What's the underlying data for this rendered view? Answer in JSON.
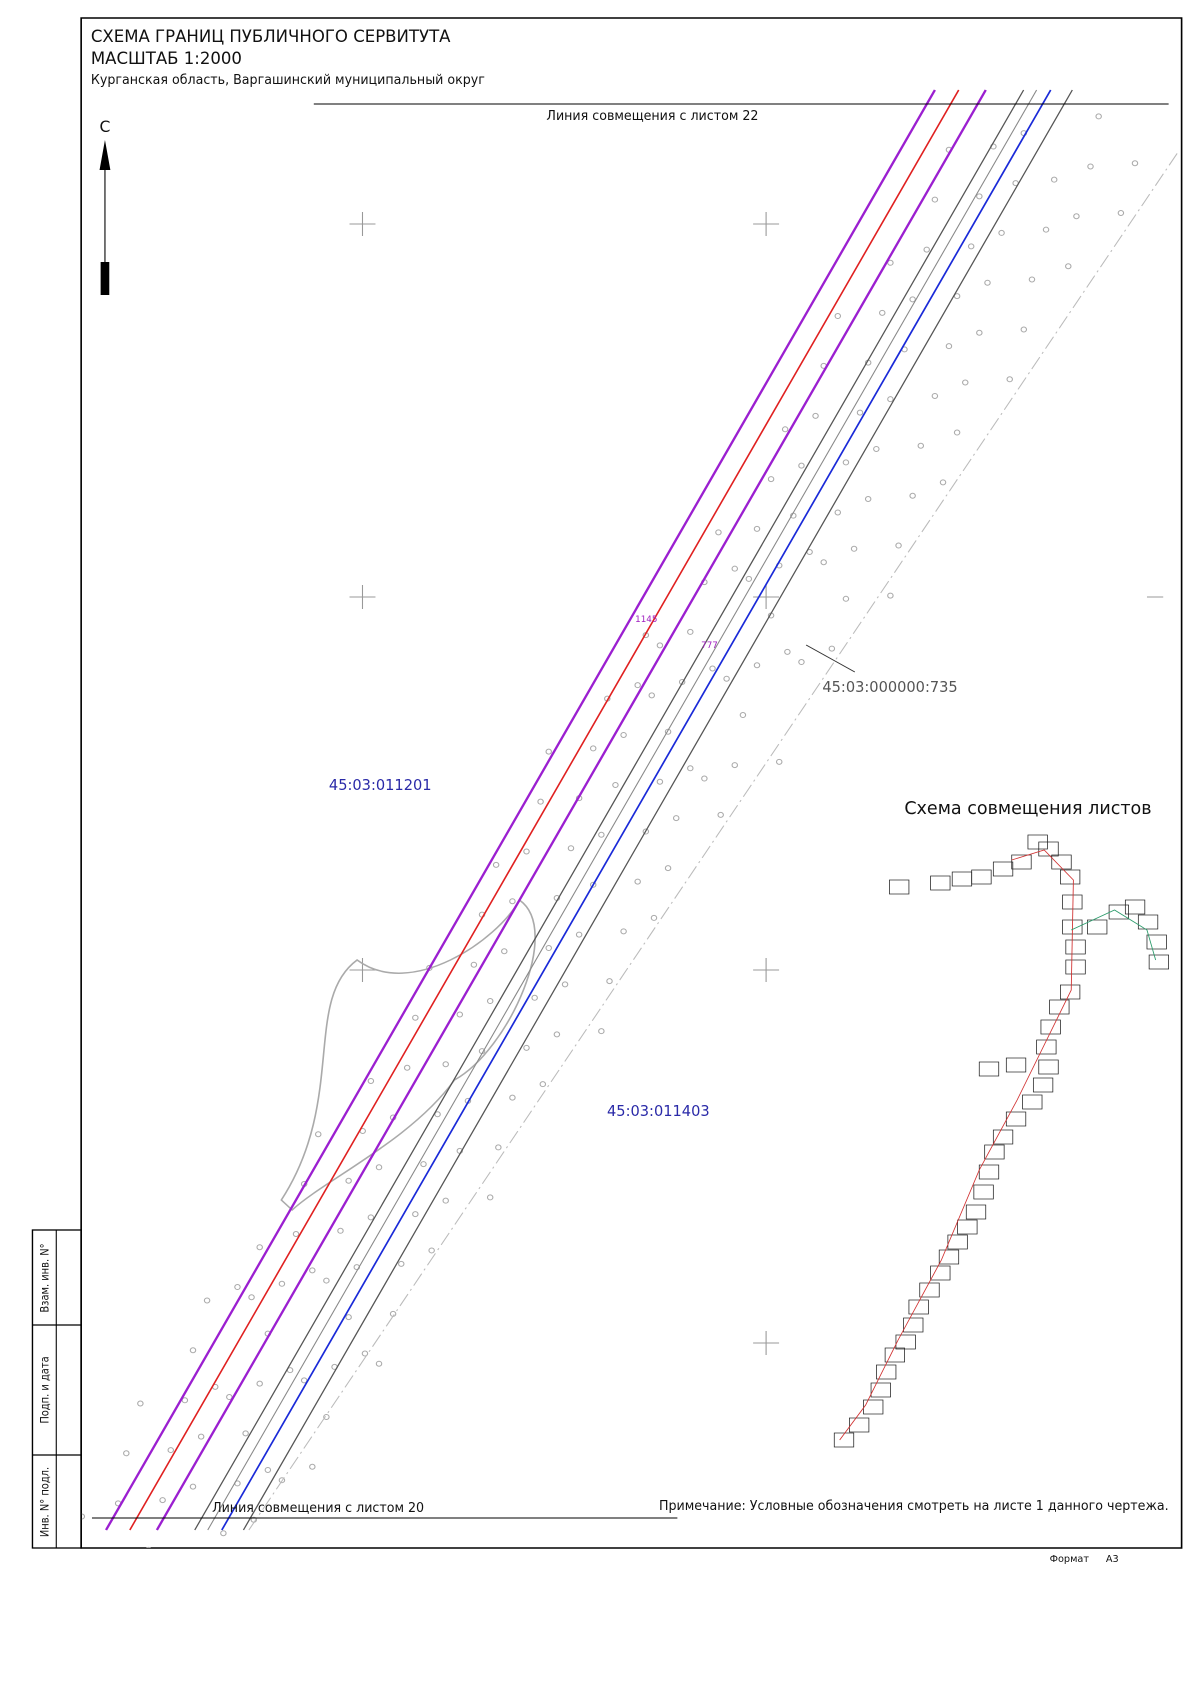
{
  "header": {
    "title": "СХЕМА ГРАНИЦ ПУБЛИЧНОГО СЕРВИТУТА",
    "scale": "МАСШТАБ 1:2000",
    "location": "Курганская область, Варгашинский муниципальный округ"
  },
  "north": "С",
  "match_lines": {
    "top": "Линия совмещения с листом 22",
    "bottom": "Линия совмещения с листом 20"
  },
  "parcels": [
    "45:03:011201",
    "45:03:011403",
    "45:03:000000:735"
  ],
  "points": [
    "1145",
    "777"
  ],
  "inset": {
    "title": "Схема совмещения листов"
  },
  "note": "Примечание: Условные обозначения смотреть на листе 1 данного чертежа.",
  "format": {
    "label": "Формат",
    "value": "А3"
  },
  "stamp": [
    "Взам. инв. N°",
    "Подп. и дата",
    "Инв. N° подл."
  ]
}
